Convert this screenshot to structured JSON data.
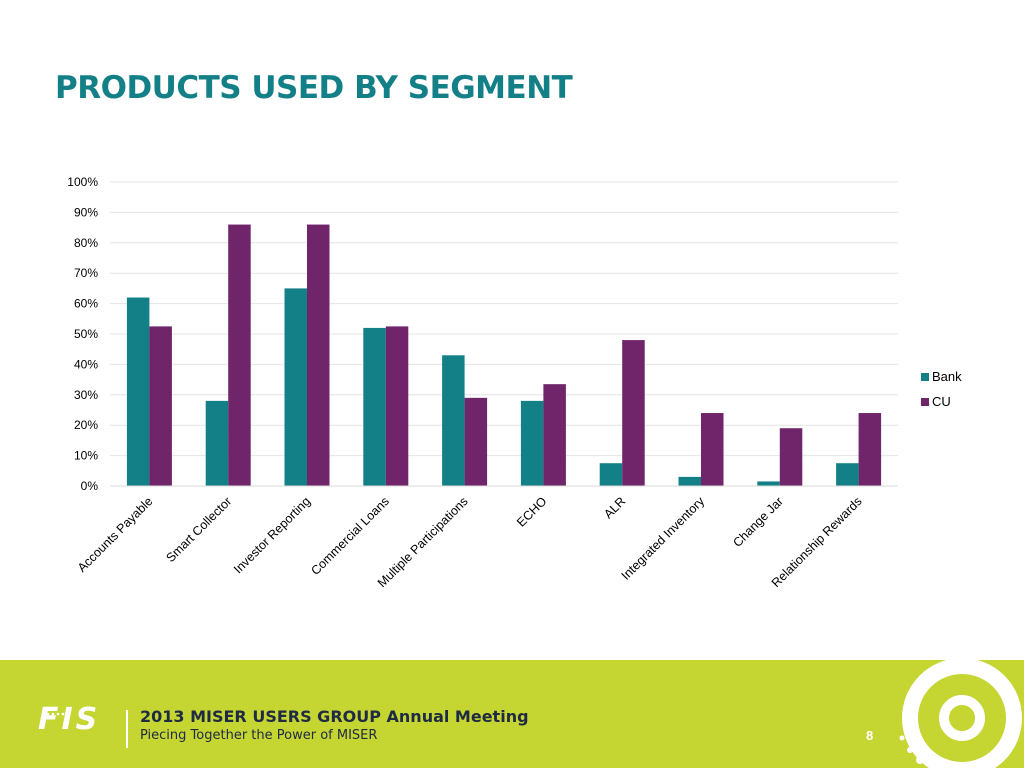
{
  "slide": {
    "title": "PRODUCTS USED BY SEGMENT"
  },
  "chart_data": {
    "type": "bar",
    "categories": [
      "Accounts Payable",
      "Smart Collector",
      "Investor Reporting",
      "Commercial Loans",
      "Multiple Participations",
      "ECHO",
      "ALR",
      "Integrated Inventory",
      "Change Jar",
      "Relationship Rewards"
    ],
    "series": [
      {
        "name": "Bank",
        "color": "#138088",
        "values": [
          62,
          28,
          65,
          52,
          43,
          28,
          7.5,
          3,
          1.5,
          7.5
        ]
      },
      {
        "name": "CU",
        "color": "#70256a",
        "values": [
          52.5,
          86,
          86,
          52.5,
          29,
          33.5,
          48,
          24,
          19,
          24
        ]
      }
    ],
    "yticks": [
      "0%",
      "10%",
      "20%",
      "30%",
      "40%",
      "50%",
      "60%",
      "70%",
      "80%",
      "90%",
      "100%"
    ],
    "ylim": [
      0,
      100
    ],
    "grid": true,
    "legend": "right"
  },
  "footer": {
    "logo": "FIS",
    "title": "2013 MISER USERS GROUP Annual Meeting",
    "subtitle": "Piecing Together the Power of MISER",
    "page_number": "8"
  }
}
